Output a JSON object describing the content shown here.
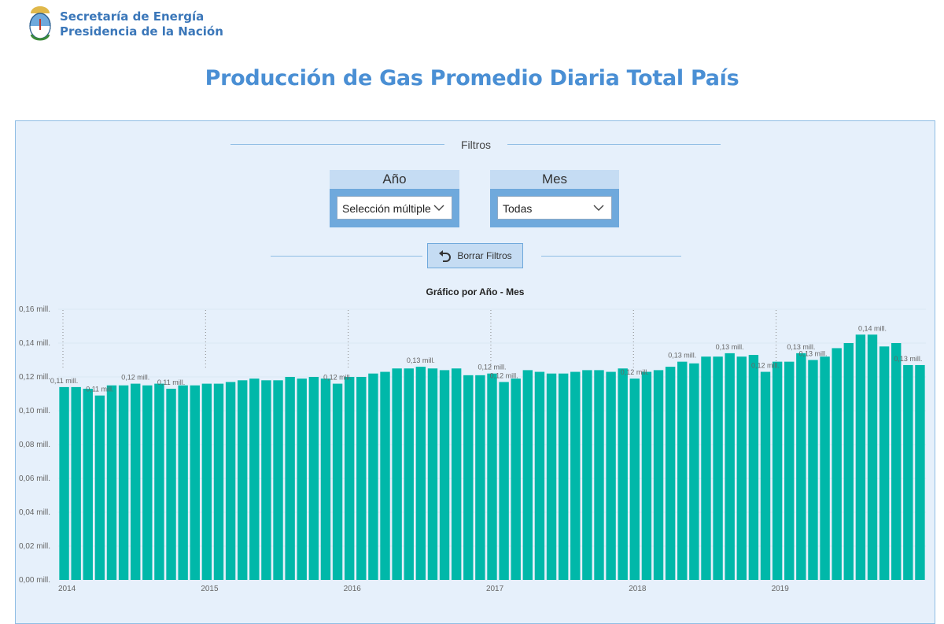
{
  "header": {
    "org_line1": "Secretaría de Energía",
    "org_line2": "Presidencia de la Nación",
    "logo_icon": "coat-of-arms-icon"
  },
  "page": {
    "title": "Producción de Gas Promedio Diaria Total País"
  },
  "filters": {
    "label": "Filtros",
    "year": {
      "title": "Año",
      "value": "Selección múltiple"
    },
    "month": {
      "title": "Mes",
      "value": "Todas"
    },
    "reset_label": "Borrar Filtros"
  },
  "colors": {
    "bar": "#00b8a9",
    "accent": "#4a8fd4",
    "panel": "#e6f0fb"
  },
  "chart_data": {
    "type": "bar",
    "title": "Gráfico por Año - Mes",
    "xlabel": "",
    "ylabel": "",
    "ylim": [
      0,
      0.16
    ],
    "y_ticks": [
      "0,00 mill.",
      "0,02 mill.",
      "0,04 mill.",
      "0,06 mill.",
      "0,08 mill.",
      "0,10 mill.",
      "0,12 mill.",
      "0,14 mill.",
      "0,16 mill."
    ],
    "x_labels": [
      "2014",
      "2015",
      "2016",
      "2017",
      "2018",
      "2019"
    ],
    "grid": false,
    "values": [
      0.114,
      0.114,
      0.113,
      0.109,
      0.115,
      0.115,
      0.116,
      0.115,
      0.116,
      0.113,
      0.115,
      0.115,
      0.116,
      0.116,
      0.117,
      0.118,
      0.119,
      0.118,
      0.118,
      0.12,
      0.119,
      0.12,
      0.119,
      0.116,
      0.12,
      0.12,
      0.122,
      0.123,
      0.125,
      0.125,
      0.126,
      0.125,
      0.124,
      0.125,
      0.121,
      0.121,
      0.122,
      0.117,
      0.119,
      0.124,
      0.123,
      0.122,
      0.122,
      0.123,
      0.124,
      0.124,
      0.123,
      0.125,
      0.119,
      0.123,
      0.124,
      0.126,
      0.129,
      0.128,
      0.132,
      0.132,
      0.134,
      0.132,
      0.133,
      0.123,
      0.129,
      0.129,
      0.134,
      0.13,
      0.132,
      0.137,
      0.14,
      0.145,
      0.145,
      0.138,
      0.14,
      0.127,
      0.127
    ],
    "data_labels": [
      {
        "index": 0,
        "text": "0,11 mill."
      },
      {
        "index": 3,
        "text": "0,11 mill."
      },
      {
        "index": 6,
        "text": "0,12 mill."
      },
      {
        "index": 9,
        "text": "0,11 mill."
      },
      {
        "index": 23,
        "text": "0,12 mill."
      },
      {
        "index": 30,
        "text": "0,13 mill."
      },
      {
        "index": 36,
        "text": "0,12 mill."
      },
      {
        "index": 37,
        "text": "0,12 mill."
      },
      {
        "index": 48,
        "text": "0,12 mill."
      },
      {
        "index": 52,
        "text": "0,13 mill."
      },
      {
        "index": 56,
        "text": "0,13 mill."
      },
      {
        "index": 59,
        "text": "0,12 mill."
      },
      {
        "index": 62,
        "text": "0,13 mill."
      },
      {
        "index": 63,
        "text": "0,13 mill."
      },
      {
        "index": 68,
        "text": "0,14 mill."
      },
      {
        "index": 71,
        "text": "0,13 mill."
      }
    ]
  }
}
